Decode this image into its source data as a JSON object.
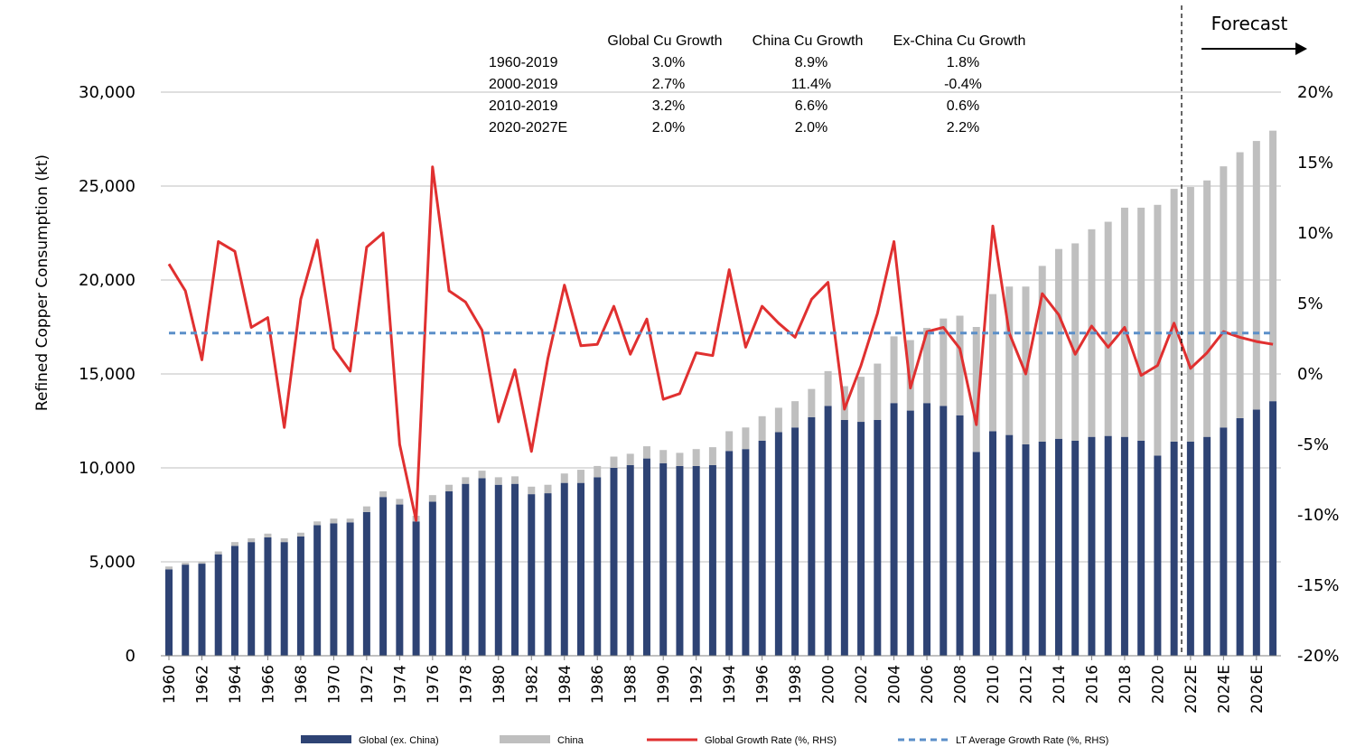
{
  "chart_data": {
    "type": "bar",
    "ylabel": "Refined Copper Consumption (kt)",
    "ylim": [
      0,
      30000
    ],
    "y_ticks": [
      "0",
      "5,000",
      "10,000",
      "15,000",
      "20,000",
      "25,000",
      "30,000"
    ],
    "y2lim": [
      -20,
      20
    ],
    "y2_ticks": [
      "-20%",
      "-15%",
      "-10%",
      "-5%",
      "0%",
      "5%",
      "10%",
      "15%",
      "20%"
    ],
    "x_tick_labels": [
      "1960",
      "1962",
      "1964",
      "1966",
      "1968",
      "1970",
      "1972",
      "1974",
      "1976",
      "1978",
      "1980",
      "1982",
      "1984",
      "1986",
      "1988",
      "1990",
      "1992",
      "1994",
      "1996",
      "1998",
      "2000",
      "2002",
      "2004",
      "2006",
      "2008",
      "2010",
      "2012",
      "2014",
      "2016",
      "2018",
      "2020",
      "2022E",
      "2024E",
      "2026E"
    ],
    "years": [
      1960,
      1961,
      1962,
      1963,
      1964,
      1965,
      1966,
      1967,
      1968,
      1969,
      1970,
      1971,
      1972,
      1973,
      1974,
      1975,
      1976,
      1977,
      1978,
      1979,
      1980,
      1981,
      1982,
      1983,
      1984,
      1985,
      1986,
      1987,
      1988,
      1989,
      1990,
      1991,
      1992,
      1993,
      1994,
      1995,
      1996,
      1997,
      1998,
      1999,
      2000,
      2001,
      2002,
      2003,
      2004,
      2005,
      2006,
      2007,
      2008,
      2009,
      2010,
      2011,
      2012,
      2013,
      2014,
      2015,
      2016,
      2017,
      2018,
      2019,
      2020,
      2021,
      2022,
      2023,
      2024,
      2025,
      2026,
      2027
    ],
    "series": [
      {
        "name": "Global (ex. China)",
        "kind": "stacked-bar",
        "color": "#2e4374",
        "values": [
          4600,
          4850,
          4900,
          5400,
          5850,
          6050,
          6300,
          6050,
          6350,
          6950,
          7050,
          7100,
          7650,
          8450,
          8050,
          7150,
          8200,
          8750,
          9150,
          9450,
          9100,
          9150,
          8600,
          8650,
          9200,
          9200,
          9500,
          10000,
          10150,
          10500,
          10250,
          10100,
          10100,
          10150,
          10900,
          11000,
          11450,
          11900,
          12150,
          12700,
          13300,
          12550,
          12450,
          12550,
          13450,
          13050,
          13450,
          13300,
          12800,
          10850,
          11950,
          11750,
          11250,
          11400,
          11550,
          11450,
          11650,
          11700,
          11650,
          11450,
          10650,
          11400,
          11400,
          11650,
          12150,
          12650,
          13100,
          13550
        ]
      },
      {
        "name": "China",
        "kind": "stacked-bar",
        "color": "#bfbfbf",
        "values": [
          150,
          100,
          100,
          150,
          200,
          200,
          200,
          200,
          200,
          200,
          250,
          200,
          300,
          300,
          300,
          300,
          350,
          350,
          350,
          400,
          400,
          400,
          400,
          450,
          500,
          700,
          600,
          600,
          600,
          650,
          700,
          700,
          900,
          950,
          1050,
          1150,
          1300,
          1300,
          1400,
          1500,
          1850,
          1800,
          2400,
          3000,
          3550,
          3750,
          4000,
          4650,
          5300,
          6650,
          7300,
          7900,
          8400,
          9350,
          10100,
          10500,
          11050,
          11400,
          12200,
          12400,
          13350,
          13450,
          13550,
          13650,
          13900,
          14150,
          14300,
          14400
        ]
      },
      {
        "name": "Global Growth Rate (%, RHS)",
        "kind": "line",
        "axis": "right",
        "color": "#e03030",
        "values": [
          7.8,
          5.9,
          1.0,
          9.4,
          8.7,
          3.3,
          4.0,
          -3.8,
          5.3,
          9.5,
          1.8,
          0.2,
          9.0,
          10.0,
          -5.0,
          -10.4,
          14.7,
          5.9,
          5.1,
          3.1,
          -3.4,
          0.3,
          -5.5,
          1.1,
          6.3,
          2.0,
          2.1,
          4.8,
          1.4,
          3.9,
          -1.8,
          -1.4,
          1.5,
          1.3,
          7.4,
          1.9,
          4.8,
          3.6,
          2.6,
          5.3,
          6.5,
          -2.5,
          0.6,
          4.3,
          9.4,
          -1.0,
          3.0,
          3.3,
          1.8,
          -3.6,
          10.5,
          2.9,
          0.0,
          5.7,
          4.2,
          1.4,
          3.4,
          1.9,
          3.3,
          -0.1,
          0.6,
          3.6,
          0.4,
          1.5,
          3.0,
          2.6,
          2.3,
          2.1
        ]
      },
      {
        "name": "LT Average Growth Rate (%, RHS)",
        "kind": "dashed-line",
        "axis": "right",
        "color": "#5b8fc9",
        "value": 2.9
      }
    ],
    "forecast_from_year": 2021.5,
    "forecast_label": "Forecast",
    "legend_position": "bottom",
    "grid": true
  },
  "growth_table": {
    "headers": [
      "Global Cu Growth",
      "China Cu Growth",
      "Ex-China Cu Growth"
    ],
    "rows": [
      {
        "period": "1960-2019",
        "values": [
          "3.0%",
          "8.9%",
          "1.8%"
        ]
      },
      {
        "period": "2000-2019",
        "values": [
          "2.7%",
          "11.4%",
          "-0.4%"
        ]
      },
      {
        "period": "2010-2019",
        "values": [
          "3.2%",
          "6.6%",
          "0.6%"
        ]
      },
      {
        "period": "2020-2027E",
        "values": [
          "2.0%",
          "2.0%",
          "2.2%"
        ]
      }
    ]
  }
}
